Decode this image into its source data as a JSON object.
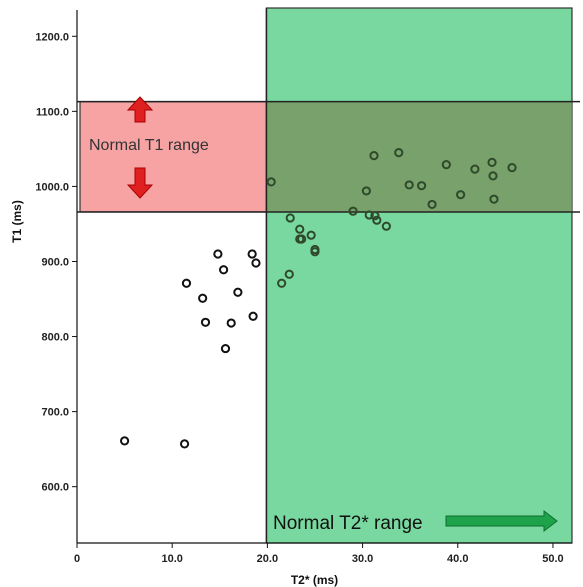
{
  "chart_data": {
    "type": "scatter",
    "title": "",
    "xlabel": "T2* (ms)",
    "ylabel": "T1 (ms)",
    "xlim": [
      0,
      52
    ],
    "ylim": [
      525,
      1235
    ],
    "x_ticks": [
      "0",
      "10.0",
      "20.0",
      "30.0",
      "40.0",
      "50.0"
    ],
    "y_ticks": [
      "600.0",
      "700.0",
      "800.0",
      "900.0",
      "1000.0",
      "1100.0",
      "1200.0"
    ],
    "x_tick_values": [
      0,
      10,
      20,
      30,
      40,
      50
    ],
    "y_tick_values": [
      600,
      700,
      800,
      900,
      1000,
      1100,
      1200
    ],
    "grid": false,
    "regions": [
      {
        "label": "Normal T1 range",
        "axis": "y",
        "range": [
          966,
          1113
        ],
        "color": "#f7a3a3"
      },
      {
        "label": "Normal T2* range",
        "axis": "x",
        "range": [
          19.9,
          52
        ],
        "color": "#5ccf8a"
      }
    ],
    "colors": {
      "t1_region": "#f7a3a3",
      "t2_region": "#5ccf8a",
      "t1_arrows": "#e02020",
      "t2_arrow": "#1fa34a",
      "points": "#111111"
    },
    "series": [
      {
        "x": [
          5.0,
          11.3,
          11.5,
          13.2,
          13.5,
          14.8,
          15.4,
          15.6,
          16.2,
          16.9,
          18.4,
          18.5,
          18.8,
          20.4,
          21.5,
          22.3,
          22.4,
          23.4,
          23.4,
          23.6,
          24.6,
          25.0,
          25.0,
          29.0,
          30.4,
          30.7,
          31.2,
          31.3,
          31.5,
          32.5,
          33.8,
          34.9,
          36.2,
          37.3,
          38.8,
          40.3,
          41.8,
          43.6,
          43.7,
          43.8,
          45.7
        ],
        "y": [
          661,
          657,
          871,
          851,
          819,
          910,
          889,
          784,
          818,
          859,
          910,
          827,
          898,
          1006,
          871,
          883,
          958,
          943,
          930,
          930,
          935,
          916,
          913,
          967,
          994,
          962,
          1041,
          961,
          955,
          947,
          1045,
          1002,
          1001,
          976,
          1029,
          989,
          1023,
          1032,
          1014,
          983,
          1025
        ]
      }
    ]
  }
}
